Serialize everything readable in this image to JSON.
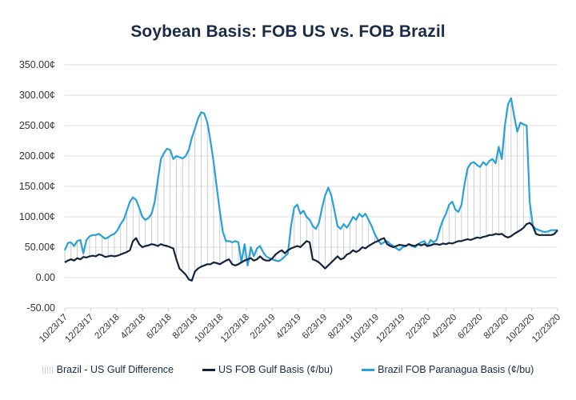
{
  "chart_data": {
    "type": "line",
    "title": "Soybean Basis: FOB US vs. FOB Brazil",
    "xlabel": "",
    "ylabel": "",
    "ylim": [
      -50,
      350
    ],
    "yticks": [
      350,
      300,
      250,
      200,
      150,
      100,
      50,
      0,
      -50
    ],
    "ytick_labels": [
      "350.00¢",
      "300.00¢",
      "250.00¢",
      "200.00¢",
      "150.00¢",
      "100.00¢",
      "50.00¢",
      "0.00",
      "-50.00"
    ],
    "xtick_labels": [
      "10/23/17",
      "12/23/17",
      "2/23/18",
      "4/23/18",
      "6/23/18",
      "8/23/18",
      "10/23/18",
      "12/23/18",
      "2/23/19",
      "4/23/19",
      "6/23/19",
      "8/23/19",
      "10/23/19",
      "12/23/19",
      "2/23/20",
      "4/23/20",
      "6/23/20",
      "8/23/20",
      "10/23/20",
      "12/23/20"
    ],
    "grid": true,
    "legend_position": "bottom",
    "samples_per_tick_interval": 8,
    "series": [
      {
        "name": "Brazil - US Gulf Difference",
        "kind": "vertical-hatch",
        "color": "#c9ced6",
        "derived_from": [
          "Brazil FOB Paranagua Basis (¢/bu)",
          "US FOB Gulf Basis (¢/bu)"
        ]
      },
      {
        "name": "US FOB Gulf Basis (¢/bu)",
        "kind": "line",
        "color": "#14233d",
        "values": [
          25,
          28,
          30,
          28,
          32,
          30,
          34,
          33,
          35,
          36,
          35,
          38,
          37,
          34,
          35,
          36,
          35,
          36,
          38,
          40,
          42,
          45,
          60,
          65,
          55,
          50,
          52,
          53,
          55,
          54,
          52,
          55,
          53,
          52,
          50,
          48,
          30,
          15,
          10,
          5,
          -3,
          -5,
          10,
          15,
          18,
          20,
          22,
          22,
          25,
          24,
          22,
          25,
          28,
          30,
          22,
          20,
          22,
          25,
          28,
          30,
          32,
          28,
          30,
          35,
          30,
          28,
          28,
          32,
          38,
          42,
          45,
          40,
          45,
          48,
          50,
          52,
          50,
          55,
          60,
          58,
          30,
          28,
          25,
          20,
          15,
          20,
          25,
          30,
          35,
          30,
          32,
          38,
          40,
          45,
          42,
          45,
          50,
          48,
          52,
          55,
          58,
          60,
          63,
          65,
          55,
          52,
          50,
          52,
          54,
          53,
          52,
          55,
          53,
          52,
          55,
          53,
          55,
          52,
          53,
          55,
          55,
          54,
          56,
          55,
          57,
          56,
          58,
          60,
          60,
          62,
          63,
          62,
          64,
          66,
          65,
          67,
          68,
          70,
          70,
          72,
          71,
          72,
          68,
          66,
          68,
          72,
          75,
          78,
          82,
          88,
          90,
          85,
          72,
          70,
          70,
          70,
          70,
          70,
          72,
          78
        ]
      },
      {
        "name": "Brazil FOB Paranagua Basis (¢/bu)",
        "kind": "line",
        "color": "#29a0d8",
        "values": [
          45,
          57,
          58,
          52,
          60,
          62,
          40,
          62,
          68,
          70,
          70,
          72,
          68,
          64,
          66,
          70,
          72,
          78,
          88,
          95,
          110,
          125,
          132,
          128,
          115,
          100,
          95,
          98,
          105,
          125,
          160,
          195,
          205,
          212,
          210,
          195,
          200,
          198,
          196,
          200,
          210,
          230,
          245,
          262,
          272,
          270,
          255,
          225,
          190,
          150,
          110,
          75,
          60,
          60,
          58,
          60,
          58,
          25,
          55,
          20,
          50,
          35,
          48,
          52,
          42,
          35,
          32,
          30,
          28,
          27,
          30,
          35,
          40,
          85,
          115,
          120,
          105,
          110,
          100,
          95,
          85,
          80,
          90,
          115,
          135,
          148,
          135,
          110,
          85,
          80,
          88,
          82,
          90,
          100,
          95,
          105,
          100,
          105,
          95,
          85,
          72,
          62,
          55,
          58,
          60,
          55,
          52,
          48,
          45,
          50,
          52,
          55,
          52,
          50,
          55,
          58,
          60,
          52,
          62,
          58,
          62,
          80,
          95,
          105,
          120,
          125,
          112,
          108,
          120,
          155,
          180,
          188,
          190,
          185,
          182,
          190,
          185,
          192,
          195,
          188,
          215,
          195,
          250,
          285,
          295,
          265,
          240,
          255,
          252,
          250,
          125,
          85,
          80,
          78,
          76,
          75,
          76,
          78,
          78,
          78
        ]
      }
    ]
  },
  "legend": {
    "diff_label": "Brazil - US Gulf Difference",
    "us_label": "US FOB Gulf Basis (¢/bu)",
    "brazil_label": "Brazil FOB Paranagua Basis (¢/bu)"
  }
}
